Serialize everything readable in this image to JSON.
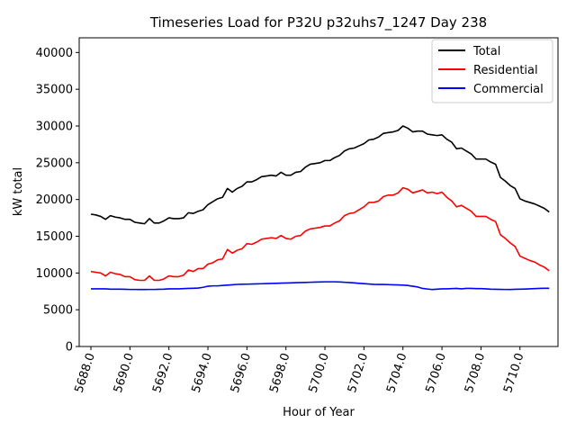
{
  "chart_data": {
    "type": "line",
    "title": "Timeseries Load for P32U p32uhs7_1247  Day 238",
    "xlabel": "Hour of Year",
    "ylabel": "kW total",
    "xlim": [
      5687.4,
      5711.95
    ],
    "ylim": [
      0,
      42000
    ],
    "x_ticks": [
      5688,
      5690,
      5692,
      5694,
      5696,
      5698,
      5700,
      5702,
      5704,
      5706,
      5708,
      5710
    ],
    "x_tick_labels": [
      "5688.0",
      "5690.0",
      "5692.0",
      "5694.0",
      "5696.0",
      "5698.0",
      "5700.0",
      "5702.0",
      "5704.0",
      "5706.0",
      "5708.0",
      "5710.0"
    ],
    "y_ticks": [
      0,
      5000,
      10000,
      15000,
      20000,
      25000,
      30000,
      35000,
      40000
    ],
    "y_tick_labels": [
      "0",
      "5000",
      "10000",
      "15000",
      "20000",
      "25000",
      "30000",
      "35000",
      "40000"
    ],
    "legend_position": "top-right",
    "x": [
      5688.0,
      5688.25,
      5688.5,
      5688.75,
      5689.0,
      5689.25,
      5689.5,
      5689.75,
      5690.0,
      5690.25,
      5690.5,
      5690.75,
      5691.0,
      5691.25,
      5691.5,
      5691.75,
      5692.0,
      5692.25,
      5692.5,
      5692.75,
      5693.0,
      5693.25,
      5693.5,
      5693.75,
      5694.0,
      5694.25,
      5694.5,
      5694.75,
      5695.0,
      5695.25,
      5695.5,
      5695.75,
      5696.0,
      5696.25,
      5696.5,
      5696.75,
      5697.0,
      5697.25,
      5697.5,
      5697.75,
      5698.0,
      5698.25,
      5698.5,
      5698.75,
      5699.0,
      5699.25,
      5699.5,
      5699.75,
      5700.0,
      5700.25,
      5700.5,
      5700.75,
      5701.0,
      5701.25,
      5701.5,
      5701.75,
      5702.0,
      5702.25,
      5702.5,
      5702.75,
      5703.0,
      5703.25,
      5703.5,
      5703.75,
      5704.0,
      5704.25,
      5704.5,
      5704.75,
      5705.0,
      5705.25,
      5705.5,
      5705.75,
      5706.0,
      5706.25,
      5706.5,
      5706.75,
      5707.0,
      5707.25,
      5707.5,
      5707.75,
      5708.0,
      5708.25,
      5708.5,
      5708.75,
      5709.0,
      5709.25,
      5709.5,
      5709.75,
      5710.0,
      5710.25,
      5710.5,
      5710.75,
      5711.0,
      5711.25,
      5711.5
    ],
    "series": [
      {
        "name": "Total",
        "color": "#000000",
        "values": [
          18000,
          17900,
          17700,
          17300,
          17800,
          17600,
          17500,
          17300,
          17300,
          16900,
          16800,
          16700,
          17400,
          16800,
          16800,
          17100,
          17500,
          17400,
          17400,
          17500,
          18200,
          18100,
          18400,
          18600,
          19300,
          19700,
          20100,
          20300,
          21500,
          21000,
          21500,
          21800,
          22400,
          22400,
          22700,
          23100,
          23200,
          23300,
          23200,
          23700,
          23300,
          23300,
          23700,
          23800,
          24400,
          24800,
          24900,
          25000,
          25300,
          25300,
          25700,
          26000,
          26600,
          26900,
          27000,
          27300,
          27600,
          28100,
          28200,
          28500,
          29000,
          29100,
          29200,
          29400,
          30000,
          29700,
          29200,
          29300,
          29300,
          28900,
          28800,
          28700,
          28800,
          28200,
          27800,
          26900,
          27000,
          26600,
          26200,
          25500,
          25500,
          25500,
          25100,
          24800,
          23000,
          22500,
          21900,
          21500,
          20100,
          19800,
          19600,
          19400,
          19100,
          18800,
          18300
        ]
      },
      {
        "name": "Residential",
        "color": "#ff0000",
        "values": [
          10200,
          10100,
          10000,
          9600,
          10100,
          9900,
          9800,
          9500,
          9500,
          9100,
          9000,
          9000,
          9600,
          9000,
          9000,
          9200,
          9600,
          9500,
          9500,
          9700,
          10400,
          10200,
          10600,
          10600,
          11200,
          11400,
          11800,
          11900,
          13200,
          12700,
          13100,
          13300,
          14000,
          13900,
          14200,
          14600,
          14700,
          14800,
          14700,
          15100,
          14700,
          14600,
          15000,
          15100,
          15700,
          16000,
          16100,
          16200,
          16400,
          16400,
          16800,
          17100,
          17800,
          18100,
          18200,
          18600,
          19000,
          19600,
          19600,
          19800,
          20400,
          20600,
          20600,
          20900,
          21600,
          21400,
          20900,
          21100,
          21300,
          20900,
          21000,
          20800,
          21000,
          20300,
          19800,
          19000,
          19200,
          18800,
          18400,
          17700,
          17700,
          17700,
          17300,
          17000,
          15200,
          14700,
          14100,
          13600,
          12300,
          12000,
          11700,
          11500,
          11100,
          10800,
          10300
        ]
      },
      {
        "name": "Commercial",
        "color": "#0000ff",
        "values": [
          7850,
          7850,
          7850,
          7850,
          7800,
          7800,
          7800,
          7780,
          7760,
          7760,
          7750,
          7750,
          7760,
          7760,
          7780,
          7800,
          7850,
          7850,
          7850,
          7870,
          7900,
          7920,
          7950,
          8050,
          8200,
          8250,
          8250,
          8300,
          8350,
          8400,
          8450,
          8470,
          8480,
          8500,
          8520,
          8540,
          8560,
          8580,
          8600,
          8620,
          8640,
          8660,
          8680,
          8700,
          8720,
          8740,
          8760,
          8780,
          8800,
          8800,
          8800,
          8780,
          8740,
          8700,
          8650,
          8600,
          8550,
          8500,
          8460,
          8440,
          8440,
          8420,
          8400,
          8380,
          8350,
          8300,
          8200,
          8100,
          7900,
          7820,
          7750,
          7800,
          7850,
          7850,
          7880,
          7900,
          7850,
          7900,
          7900,
          7880,
          7880,
          7850,
          7800,
          7780,
          7770,
          7760,
          7750,
          7780,
          7800,
          7820,
          7850,
          7870,
          7900,
          7920,
          7920
        ]
      }
    ]
  }
}
